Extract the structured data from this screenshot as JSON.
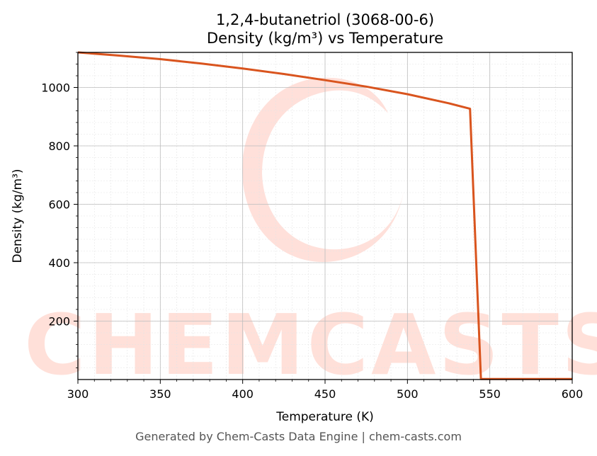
{
  "chart_data": {
    "type": "line",
    "title_lines": [
      "1,2,4-butanetriol (3068-00-6)",
      "Density (kg/m³) vs Temperature"
    ],
    "xlabel": "Temperature (K)",
    "ylabel": "Density (kg/m³)",
    "xlim": [
      300,
      600
    ],
    "ylim": [
      0,
      1120
    ],
    "xticks": [
      300,
      350,
      400,
      450,
      500,
      550,
      600
    ],
    "yticks": [
      200,
      400,
      600,
      800,
      1000
    ],
    "grid": true,
    "line_color": "#d9541e",
    "series": [
      {
        "x": [
          300,
          325,
          350,
          375,
          400,
          425,
          450,
          475,
          500,
          525,
          538,
          544.6,
          550,
          575,
          600
        ],
        "y": [
          1120,
          1109,
          1097,
          1082,
          1065,
          1046,
          1025,
          1003,
          977,
          946,
          927,
          2,
          2,
          2,
          2
        ]
      }
    ]
  },
  "watermark": {
    "text": "CHEMCASTS",
    "color": "#ffdbd3"
  },
  "footer": "Generated by Chem-Casts Data Engine | chem-casts.com"
}
